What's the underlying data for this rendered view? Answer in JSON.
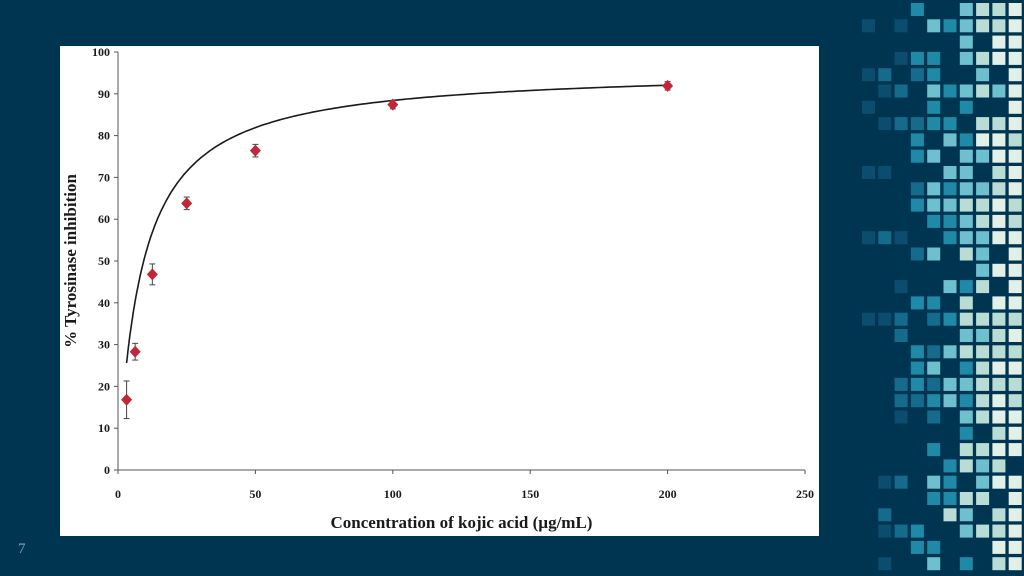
{
  "slide": {
    "number": "7",
    "background": "#003552",
    "mosaic_colors": [
      "#0b4d6e",
      "#146b8c",
      "#1f8aa8",
      "#6fc0cf",
      "#b9ddd5",
      "#e2f0e8"
    ]
  },
  "chart_data": {
    "type": "scatter",
    "title": "",
    "xlabel": "Concentration of kojic acid (µg/mL)",
    "ylabel": "% Tyrosinase inhibition",
    "xlim": [
      0,
      250
    ],
    "ylim": [
      0,
      100
    ],
    "xticks": [
      0,
      50,
      100,
      150,
      200,
      250
    ],
    "yticks": [
      0,
      10,
      20,
      30,
      40,
      50,
      60,
      70,
      80,
      90,
      100
    ],
    "grid": false,
    "legend": "none",
    "marker_color": "#c0273a",
    "line_color": "#1a1a1a",
    "trendline": "fitted curve",
    "series": [
      {
        "x": [
          3.125,
          6.25,
          12.5,
          25,
          50,
          100,
          200
        ],
        "y": [
          16.8,
          28.3,
          46.8,
          63.8,
          76.4,
          87.4,
          91.9
        ],
        "error": [
          4.5,
          2.0,
          2.5,
          1.5,
          1.5,
          1.0,
          1.0
        ]
      }
    ]
  }
}
